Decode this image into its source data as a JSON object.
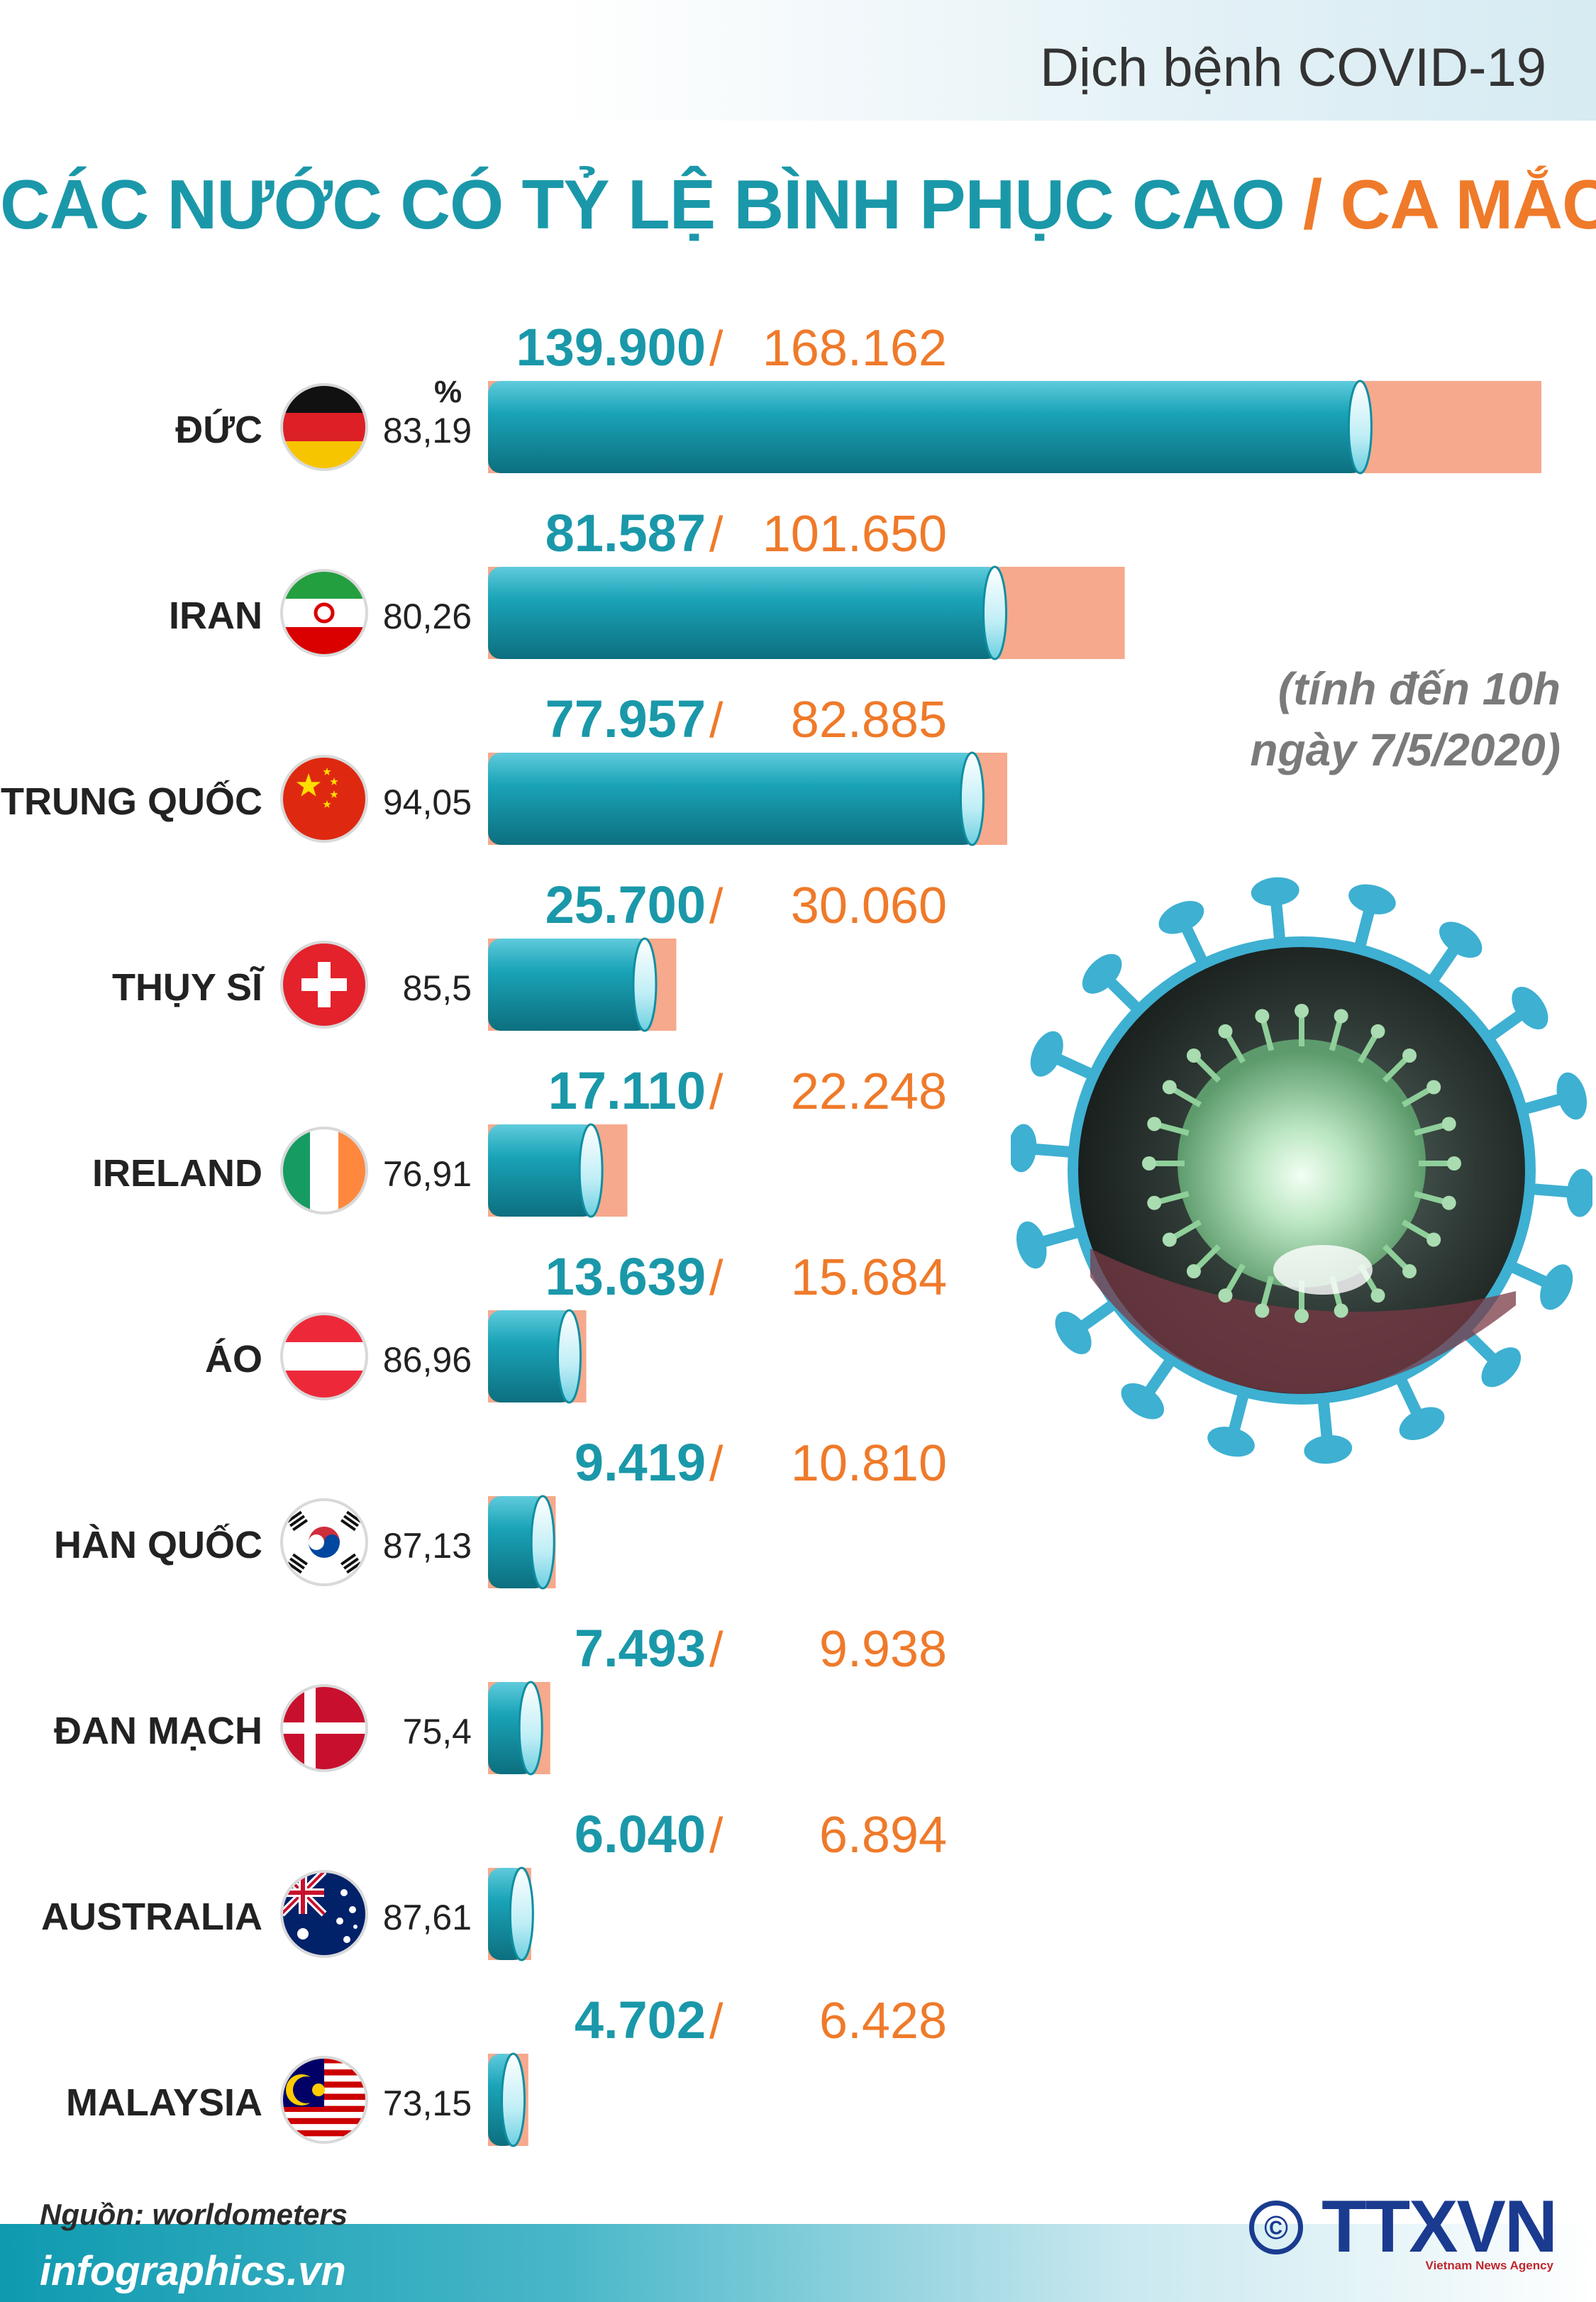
{
  "header": {
    "topic": "Dịch bệnh COVID-19"
  },
  "title": {
    "recovered": "CÁC NƯỚC CÓ TỶ LỆ BÌNH PHỤC CAO",
    "separator": "/",
    "cases": "CA MẮC"
  },
  "percent_sign": "%",
  "date_note": {
    "line1": "(tính đến 10h",
    "line2": "ngày 7/5/2020)"
  },
  "footer": {
    "source": "Nguồn: worldometers",
    "site": "infographics.vn",
    "copyright": "©",
    "logo": "TTXVN",
    "agency": "Vietnam News Agency"
  },
  "colors": {
    "recovered": "#1a98a9",
    "cases": "#ef7a2a",
    "cases_bar": "#f6a98c",
    "label": "#222222"
  },
  "chart_data": {
    "type": "bar",
    "orientation": "horizontal",
    "categories": [
      "ĐỨC",
      "IRAN",
      "TRUNG QUỐC",
      "THỤY SĨ",
      "IRELAND",
      "ÁO",
      "HÀN QUỐC",
      "ĐAN MẠCH",
      "AUSTRALIA",
      "MALAYSIA"
    ],
    "flags": [
      "germany-flag",
      "iran-flag",
      "china-flag",
      "switzerland-flag",
      "ireland-flag",
      "austria-flag",
      "south-korea-flag",
      "denmark-flag",
      "australia-flag",
      "malaysia-flag"
    ],
    "series": [
      {
        "name": "BÌNH PHỤC",
        "values": [
          139900,
          81587,
          77957,
          25700,
          17110,
          13639,
          9419,
          7493,
          6040,
          4702
        ],
        "labels": [
          "139.900",
          "81.587",
          "77.957",
          "25.700",
          "17.110",
          "13.639",
          "9.419",
          "7.493",
          "6.040",
          "4.702"
        ]
      },
      {
        "name": "CA MẮC",
        "values": [
          168162,
          101650,
          82885,
          30060,
          22248,
          15684,
          10810,
          9938,
          6894,
          6428
        ],
        "labels": [
          "168.162",
          "101.650",
          "82.885",
          "30.060",
          "22.248",
          "15.684",
          "10.810",
          "9.938",
          "6.894",
          "6.428"
        ]
      }
    ],
    "recovery_rate_percent": [
      "83,19",
      "80,26",
      "94,05",
      "85,5",
      "76,91",
      "86,96",
      "87,13",
      "75,4",
      "87,61",
      "73,15"
    ]
  }
}
